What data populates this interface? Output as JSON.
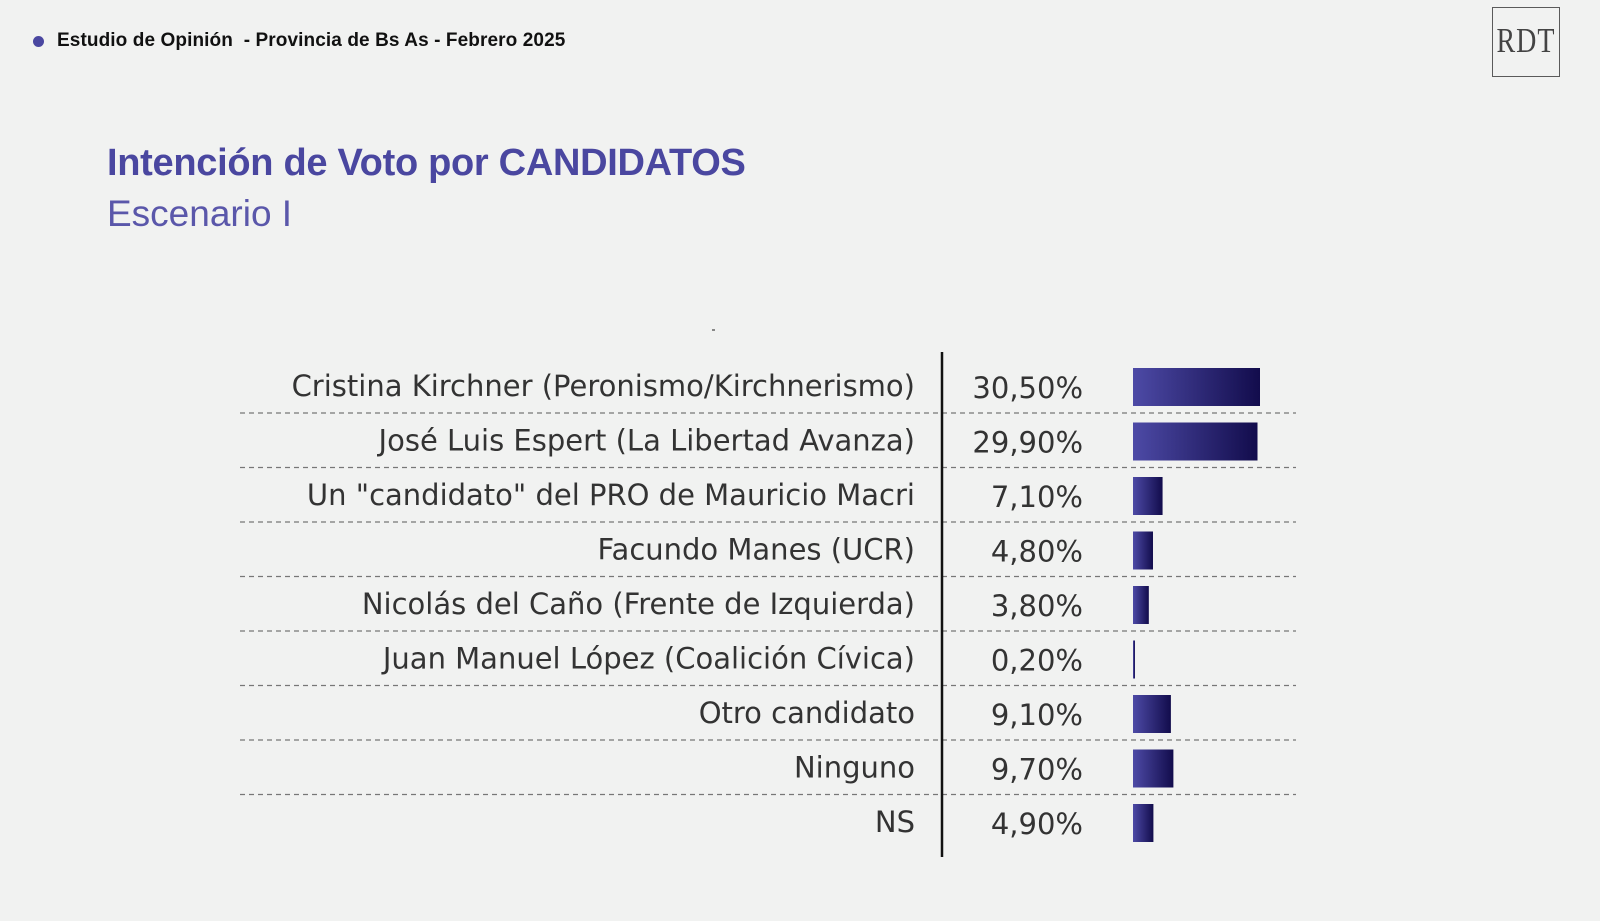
{
  "header": {
    "text": "Estudio de Opinión  - Provincia de Bs As - Febrero 2025"
  },
  "logo": {
    "text": "RDT"
  },
  "colors": {
    "accent": "#4a47a0",
    "bar_start": "#4d4aa6",
    "bar_end": "#120c4c"
  },
  "chart_data": {
    "type": "bar",
    "orientation": "horizontal",
    "title": "Intención de Voto por CANDIDATOS",
    "subtitle": "Escenario I",
    "categories": [
      "Cristina Kirchner (Peronismo/Kirchnerismo)",
      "José Luis Espert (La Libertad Avanza)",
      "Un \"candidato\" del PRO de Mauricio Macri",
      "Facundo Manes (UCR)",
      "Nicolás del Caño (Frente de Izquierda)",
      "Juan Manuel López (Coalición Cívica)",
      "Otro candidato",
      "Ninguno",
      "NS"
    ],
    "values": [
      30.5,
      29.9,
      7.1,
      4.8,
      3.8,
      0.2,
      9.1,
      9.7,
      4.9
    ],
    "value_labels": [
      "30,50%",
      "29,90%",
      "7,10%",
      "4,80%",
      "3,80%",
      "0,20%",
      "9,10%",
      "9,70%",
      "4,90%"
    ],
    "grid": "dashed row separators"
  }
}
